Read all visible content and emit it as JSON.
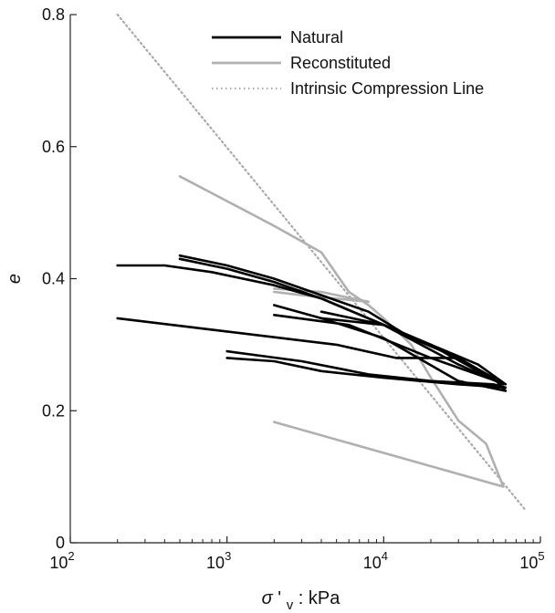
{
  "chart_data": {
    "type": "line",
    "title": "",
    "xlabel": {
      "sigma": "σ",
      "prime": "'",
      "sub": "v",
      "rest": ": kPa"
    },
    "ylabel": "e",
    "x_scale": "log",
    "xlim": [
      100,
      100000
    ],
    "ylim": [
      0,
      0.8
    ],
    "grid": false,
    "legend_position": "top-right",
    "x_ticks": [
      {
        "value": 100,
        "base": "10",
        "exp": "2"
      },
      {
        "value": 1000,
        "base": "10",
        "exp": "3"
      },
      {
        "value": 10000,
        "base": "10",
        "exp": "4"
      },
      {
        "value": 100000,
        "base": "10",
        "exp": "5"
      }
    ],
    "y_ticks": [
      {
        "value": 0,
        "label": "0"
      },
      {
        "value": 0.2,
        "label": "0.2"
      },
      {
        "value": 0.4,
        "label": "0.4"
      },
      {
        "value": 0.6,
        "label": "0.6"
      },
      {
        "value": 0.8,
        "label": "0.8"
      }
    ],
    "legend": [
      {
        "name": "Natural",
        "color": "#000000",
        "style": "solid"
      },
      {
        "name": "Reconstituted",
        "color": "#b0b0b0",
        "style": "solid"
      },
      {
        "name": "Intrinsic Compression Line",
        "color": "#aaaaaa",
        "style": "dotted"
      }
    ],
    "series": [
      {
        "name": "Intrinsic Compression Line",
        "color": "#aaaaaa",
        "style": "dotted",
        "x": [
          200,
          80000
        ],
        "y": [
          0.8,
          0.05
        ]
      },
      {
        "name": "Reconstituted",
        "color": "#b0b0b0",
        "style": "solid",
        "x": [
          500,
          2000,
          4000,
          6000,
          8000,
          10000,
          15000,
          20000,
          30000,
          45000,
          58000,
          2000
        ],
        "y": [
          0.555,
          0.48,
          0.44,
          0.38,
          0.36,
          0.34,
          0.3,
          0.25,
          0.185,
          0.15,
          0.085,
          0.183
        ]
      },
      {
        "name": "Reconstituted",
        "color": "#b0b0b0",
        "style": "solid",
        "x": [
          2000,
          4000,
          8000,
          3000,
          2000
        ],
        "y": [
          0.385,
          0.38,
          0.365,
          0.375,
          0.38
        ]
      },
      {
        "name": "Natural",
        "color": "#000000",
        "style": "solid",
        "x": [
          200,
          400,
          800,
          2000,
          4000,
          10000,
          20000,
          40000,
          60000,
          20000,
          6000,
          2000
        ],
        "y": [
          0.42,
          0.42,
          0.41,
          0.39,
          0.37,
          0.33,
          0.3,
          0.27,
          0.24,
          0.28,
          0.33,
          0.345
        ]
      },
      {
        "name": "Natural",
        "color": "#000000",
        "style": "solid",
        "x": [
          500,
          1000,
          2000,
          4000,
          8000,
          15000,
          30000,
          50000,
          60000,
          30000,
          10000,
          4000,
          2000
        ],
        "y": [
          0.435,
          0.42,
          0.4,
          0.375,
          0.35,
          0.31,
          0.28,
          0.25,
          0.23,
          0.245,
          0.31,
          0.34,
          0.36
        ]
      },
      {
        "name": "Natural",
        "color": "#000000",
        "style": "solid",
        "x": [
          500,
          1000,
          2000,
          4000,
          8000,
          20000,
          40000,
          58000,
          30000,
          10000,
          4000
        ],
        "y": [
          0.43,
          0.415,
          0.395,
          0.37,
          0.34,
          0.3,
          0.26,
          0.24,
          0.27,
          0.33,
          0.35
        ]
      },
      {
        "name": "Natural",
        "color": "#000000",
        "style": "solid",
        "x": [
          200,
          1000,
          5000,
          12000,
          28000,
          20000,
          10000,
          4000
        ],
        "y": [
          0.34,
          0.32,
          0.3,
          0.28,
          0.28,
          0.3,
          0.33,
          0.34
        ]
      },
      {
        "name": "Natural",
        "color": "#000000",
        "style": "solid",
        "x": [
          1000,
          2000,
          4000,
          10000,
          30000,
          60000,
          50000,
          20000,
          8000,
          3000,
          1000
        ],
        "y": [
          0.28,
          0.275,
          0.26,
          0.25,
          0.24,
          0.235,
          0.24,
          0.245,
          0.255,
          0.275,
          0.29
        ]
      }
    ]
  }
}
